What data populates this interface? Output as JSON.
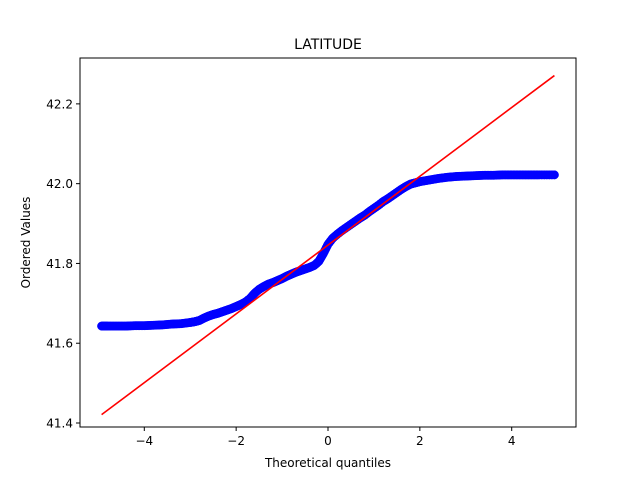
{
  "chart_data": {
    "type": "scatter",
    "title": "LATITUDE",
    "xlabel": "Theoretical quantiles",
    "ylabel": "Ordered Values",
    "xlim": [
      -5.4,
      5.4
    ],
    "ylim": [
      41.39,
      42.315
    ],
    "xticks": [
      -4,
      -2,
      0,
      2,
      4
    ],
    "xtick_labels": [
      "−4",
      "−2",
      "0",
      "2",
      "4"
    ],
    "yticks": [
      41.4,
      41.6,
      41.8,
      42.0,
      42.2
    ],
    "ytick_labels": [
      "41.4",
      "41.6",
      "41.8",
      "42.0",
      "42.2"
    ],
    "grid": false,
    "series": [
      {
        "kind": "markers",
        "color": "#0000ff",
        "x": [
          -4.93,
          -4.8,
          -4.6,
          -4.4,
          -4.2,
          -4.0,
          -3.8,
          -3.6,
          -3.4,
          -3.2,
          -3.0,
          -2.9,
          -2.8,
          -2.7,
          -2.6,
          -2.5,
          -2.4,
          -2.3,
          -2.2,
          -2.1,
          -2.0,
          -1.9,
          -1.8,
          -1.7,
          -1.6,
          -1.5,
          -1.4,
          -1.3,
          -1.2,
          -1.1,
          -1.0,
          -0.9,
          -0.8,
          -0.7,
          -0.6,
          -0.5,
          -0.4,
          -0.3,
          -0.2,
          -0.1,
          0.0,
          0.1,
          0.2,
          0.3,
          0.4,
          0.5,
          0.6,
          0.7,
          0.8,
          0.9,
          1.0,
          1.1,
          1.2,
          1.3,
          1.4,
          1.5,
          1.6,
          1.7,
          1.8,
          1.9,
          2.0,
          2.2,
          2.4,
          2.6,
          2.8,
          3.0,
          3.2,
          3.4,
          3.6,
          3.8,
          4.0,
          4.2,
          4.4,
          4.6,
          4.93
        ],
        "y": [
          41.643,
          41.643,
          41.643,
          41.643,
          41.644,
          41.644,
          41.645,
          41.646,
          41.648,
          41.649,
          41.652,
          41.654,
          41.657,
          41.663,
          41.668,
          41.672,
          41.675,
          41.679,
          41.683,
          41.687,
          41.692,
          41.697,
          41.703,
          41.712,
          41.725,
          41.735,
          41.742,
          41.748,
          41.752,
          41.757,
          41.762,
          41.768,
          41.773,
          41.778,
          41.782,
          41.786,
          41.79,
          41.795,
          41.805,
          41.825,
          41.848,
          41.863,
          41.873,
          41.882,
          41.89,
          41.898,
          41.906,
          41.914,
          41.921,
          41.93,
          41.938,
          41.946,
          41.955,
          41.962,
          41.97,
          41.978,
          41.986,
          41.993,
          41.999,
          42.002,
          42.005,
          42.009,
          42.013,
          42.016,
          42.018,
          42.019,
          42.02,
          42.021,
          42.021,
          42.022,
          42.022,
          42.022,
          42.022,
          42.022,
          42.022
        ]
      },
      {
        "kind": "line",
        "color": "#ff0000",
        "x": [
          -4.93,
          4.93
        ],
        "y": [
          41.421,
          42.271
        ]
      }
    ]
  }
}
